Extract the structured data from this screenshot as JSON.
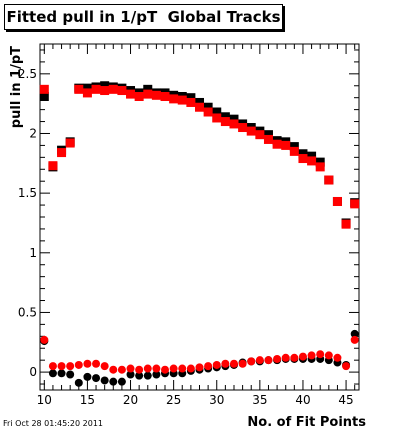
{
  "chart_data": {
    "type": "scatter",
    "title": "Fitted pull in 1/pT  Global Tracks",
    "xlabel": "No. of Fit Points",
    "ylabel": "pull in 1/pT",
    "xlim": [
      9.5,
      46.5
    ],
    "ylim": [
      -0.15,
      2.75
    ],
    "x_ticks": [
      10,
      15,
      20,
      25,
      30,
      35,
      40,
      45
    ],
    "x_tick_labels": [
      "10",
      "15",
      "20",
      "25",
      "30",
      "35",
      "40",
      "45"
    ],
    "y_ticks": [
      0,
      0.5,
      1,
      1.5,
      2,
      2.5
    ],
    "y_tick_labels": [
      "0",
      "0.5",
      "1",
      "1.5",
      "2",
      "2.5"
    ],
    "grid": false,
    "series": [
      {
        "color": "#000000",
        "marker": "square",
        "x": [
          10,
          11,
          12,
          13,
          14,
          15,
          16,
          17,
          18,
          19,
          20,
          21,
          22,
          23,
          24,
          25,
          26,
          27,
          28,
          29,
          30,
          31,
          32,
          33,
          34,
          35,
          36,
          37,
          38,
          39,
          40,
          41,
          42,
          43,
          44,
          45,
          46
        ],
        "values": [
          2.31,
          1.72,
          1.86,
          1.93,
          2.38,
          2.38,
          2.39,
          2.4,
          2.39,
          2.38,
          2.36,
          2.34,
          2.37,
          2.34,
          2.34,
          2.32,
          2.31,
          2.3,
          2.26,
          2.22,
          2.18,
          2.14,
          2.12,
          2.08,
          2.05,
          2.02,
          1.99,
          1.94,
          1.93,
          1.89,
          1.83,
          1.81,
          1.76,
          1.61,
          1.43,
          1.25,
          1.42
        ]
      },
      {
        "color": "#ff0000",
        "marker": "square",
        "x": [
          10,
          11,
          12,
          13,
          14,
          15,
          16,
          17,
          18,
          19,
          20,
          21,
          22,
          23,
          24,
          25,
          26,
          27,
          28,
          29,
          30,
          31,
          32,
          33,
          34,
          35,
          36,
          37,
          38,
          39,
          40,
          41,
          42,
          43,
          44,
          45,
          46
        ],
        "values": [
          2.37,
          1.73,
          1.84,
          1.92,
          2.37,
          2.34,
          2.37,
          2.36,
          2.37,
          2.36,
          2.33,
          2.31,
          2.33,
          2.32,
          2.31,
          2.29,
          2.28,
          2.26,
          2.22,
          2.18,
          2.13,
          2.1,
          2.08,
          2.05,
          2.02,
          1.99,
          1.95,
          1.91,
          1.9,
          1.85,
          1.79,
          1.77,
          1.72,
          1.61,
          1.43,
          1.24,
          1.41
        ]
      },
      {
        "color": "#000000",
        "marker": "circle",
        "x": [
          10,
          11,
          12,
          13,
          14,
          15,
          16,
          17,
          18,
          19,
          20,
          21,
          22,
          23,
          24,
          25,
          26,
          27,
          28,
          29,
          30,
          31,
          32,
          33,
          34,
          35,
          36,
          37,
          38,
          39,
          40,
          41,
          42,
          43,
          44,
          45,
          46
        ],
        "values": [
          0.26,
          -0.01,
          -0.01,
          -0.02,
          -0.09,
          -0.04,
          -0.05,
          -0.07,
          -0.08,
          -0.08,
          -0.02,
          -0.03,
          -0.03,
          -0.02,
          -0.01,
          -0.01,
          -0.01,
          0.01,
          0.02,
          0.03,
          0.04,
          0.05,
          0.06,
          0.08,
          0.09,
          0.09,
          0.1,
          0.1,
          0.11,
          0.11,
          0.11,
          0.11,
          0.11,
          0.1,
          0.08,
          0.06,
          0.32
        ]
      },
      {
        "color": "#ff0000",
        "marker": "circle",
        "x": [
          10,
          11,
          12,
          13,
          14,
          15,
          16,
          17,
          18,
          19,
          20,
          21,
          22,
          23,
          24,
          25,
          26,
          27,
          28,
          29,
          30,
          31,
          32,
          33,
          34,
          35,
          36,
          37,
          38,
          39,
          40,
          41,
          42,
          43,
          44,
          45,
          46
        ],
        "values": [
          0.27,
          0.05,
          0.05,
          0.05,
          0.06,
          0.07,
          0.07,
          0.05,
          0.02,
          0.02,
          0.03,
          0.02,
          0.03,
          0.03,
          0.02,
          0.03,
          0.03,
          0.03,
          0.04,
          0.05,
          0.06,
          0.07,
          0.07,
          0.07,
          0.09,
          0.1,
          0.1,
          0.11,
          0.12,
          0.12,
          0.13,
          0.14,
          0.15,
          0.14,
          0.12,
          0.05,
          0.27
        ]
      }
    ]
  },
  "footer": {
    "timestamp": "Fri Oct 28 01:45:20 2011"
  }
}
